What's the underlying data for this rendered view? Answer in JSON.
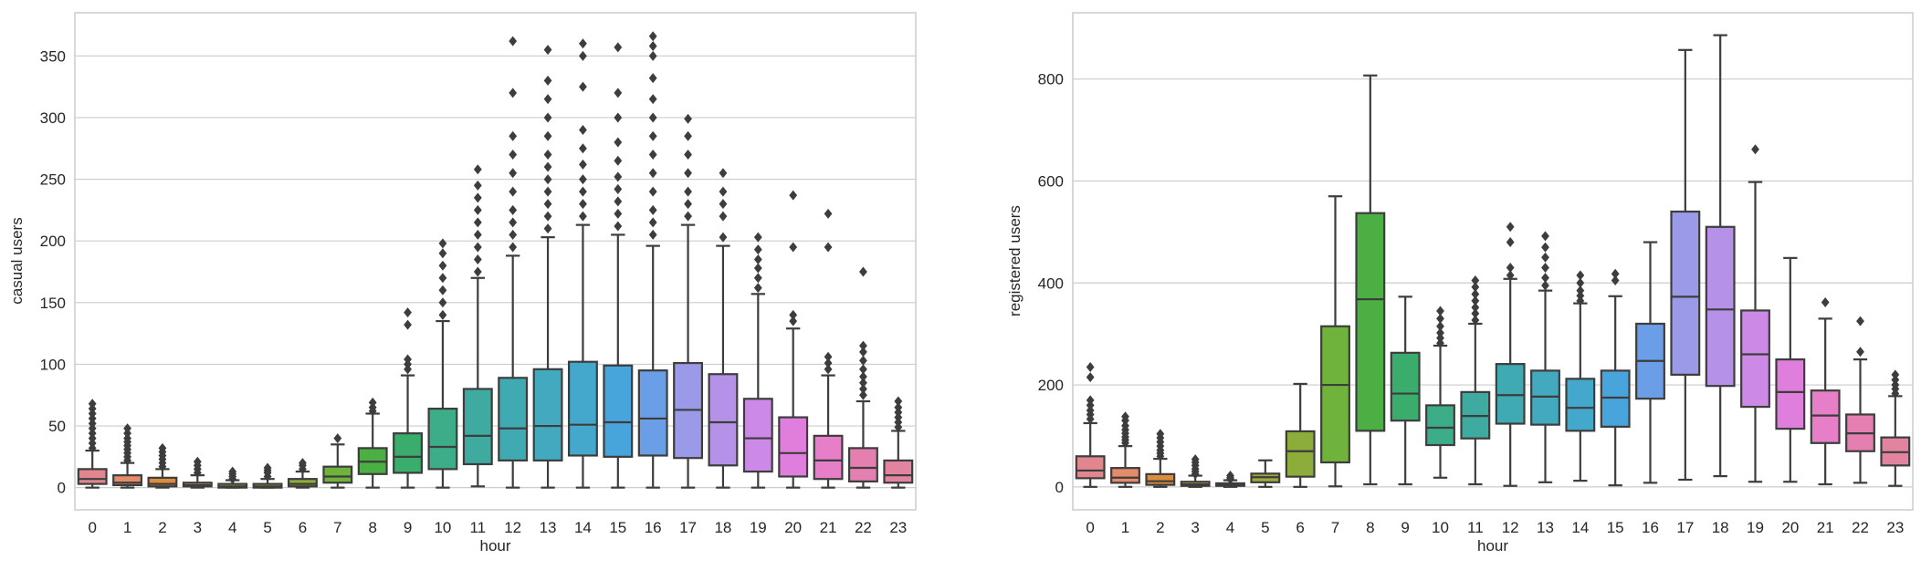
{
  "chart_data": [
    {
      "type": "box",
      "xlabel": "hour",
      "ylabel": "casual users",
      "categories": [
        "0",
        "1",
        "2",
        "3",
        "4",
        "5",
        "6",
        "7",
        "8",
        "9",
        "10",
        "11",
        "12",
        "13",
        "14",
        "15",
        "16",
        "17",
        "18",
        "19",
        "20",
        "21",
        "22",
        "23"
      ],
      "ylim": [
        -18,
        385
      ],
      "yticks": [
        0,
        50,
        100,
        150,
        200,
        250,
        300,
        350
      ],
      "grid": "horizontal",
      "boxes": [
        {
          "min": 0,
          "q1": 3,
          "median": 7,
          "q3": 15,
          "max": 30,
          "outliers": [
            32,
            36,
            40,
            44,
            48,
            52,
            56,
            60,
            64,
            68
          ]
        },
        {
          "min": 0,
          "q1": 2,
          "median": 4,
          "q3": 10,
          "max": 20,
          "outliers": [
            22,
            25,
            28,
            31,
            34,
            37,
            40,
            44,
            48
          ]
        },
        {
          "min": 0,
          "q1": 1,
          "median": 3,
          "q3": 8,
          "max": 15,
          "outliers": [
            17,
            20,
            23,
            26,
            29,
            32
          ]
        },
        {
          "min": 0,
          "q1": 1,
          "median": 2,
          "q3": 4,
          "max": 10,
          "outliers": [
            12,
            15,
            18,
            21
          ]
        },
        {
          "min": 0,
          "q1": 0,
          "median": 1,
          "q3": 3,
          "max": 6,
          "outliers": [
            7,
            9,
            11,
            13
          ]
        },
        {
          "min": 0,
          "q1": 0,
          "median": 1,
          "q3": 3,
          "max": 7,
          "outliers": [
            9,
            12,
            14,
            16
          ]
        },
        {
          "min": 0,
          "q1": 1,
          "median": 3,
          "q3": 7,
          "max": 13,
          "outliers": [
            15,
            18,
            20
          ]
        },
        {
          "min": 0,
          "q1": 4,
          "median": 9,
          "q3": 17,
          "max": 35,
          "outliers": [
            40
          ]
        },
        {
          "min": 0,
          "q1": 11,
          "median": 21,
          "q3": 32,
          "max": 60,
          "outliers": [
            62,
            65,
            69
          ]
        },
        {
          "min": 0,
          "q1": 12,
          "median": 25,
          "q3": 44,
          "max": 91,
          "outliers": [
            96,
            100,
            104,
            132,
            142
          ]
        },
        {
          "min": 0,
          "q1": 15,
          "median": 33,
          "q3": 64,
          "max": 135,
          "outliers": [
            140,
            150,
            160,
            170,
            180,
            190,
            198
          ]
        },
        {
          "min": 1,
          "q1": 19,
          "median": 42,
          "q3": 80,
          "max": 170,
          "outliers": [
            175,
            185,
            195,
            205,
            215,
            225,
            235,
            245,
            258
          ]
        },
        {
          "min": 0,
          "q1": 22,
          "median": 48,
          "q3": 89,
          "max": 188,
          "outliers": [
            195,
            205,
            215,
            225,
            240,
            255,
            270,
            285,
            320,
            362
          ]
        },
        {
          "min": 0,
          "q1": 22,
          "median": 50,
          "q3": 96,
          "max": 203,
          "outliers": [
            210,
            220,
            230,
            240,
            250,
            260,
            270,
            285,
            300,
            315,
            330,
            355
          ]
        },
        {
          "min": 0,
          "q1": 26,
          "median": 51,
          "q3": 102,
          "max": 213,
          "outliers": [
            220,
            230,
            240,
            250,
            262,
            275,
            290,
            325,
            350,
            360
          ]
        },
        {
          "min": 0,
          "q1": 25,
          "median": 53,
          "q3": 99,
          "max": 205,
          "outliers": [
            212,
            222,
            232,
            242,
            252,
            265,
            280,
            300,
            320,
            357
          ]
        },
        {
          "min": 0,
          "q1": 26,
          "median": 56,
          "q3": 95,
          "max": 196,
          "outliers": [
            205,
            215,
            225,
            240,
            255,
            270,
            285,
            300,
            315,
            332,
            350,
            358,
            366
          ]
        },
        {
          "min": 0,
          "q1": 24,
          "median": 63,
          "q3": 101,
          "max": 213,
          "outliers": [
            220,
            230,
            240,
            255,
            270,
            285,
            299
          ]
        },
        {
          "min": 0,
          "q1": 18,
          "median": 53,
          "q3": 92,
          "max": 196,
          "outliers": [
            203,
            220,
            230,
            240,
            255
          ]
        },
        {
          "min": 0,
          "q1": 13,
          "median": 40,
          "q3": 72,
          "max": 157,
          "outliers": [
            162,
            170,
            178,
            185,
            193,
            203
          ]
        },
        {
          "min": 0,
          "q1": 9,
          "median": 28,
          "q3": 57,
          "max": 129,
          "outliers": [
            135,
            140,
            195,
            237
          ]
        },
        {
          "min": 0,
          "q1": 7,
          "median": 22,
          "q3": 42,
          "max": 91,
          "outliers": [
            96,
            101,
            106,
            195,
            222
          ]
        },
        {
          "min": 0,
          "q1": 5,
          "median": 16,
          "q3": 32,
          "max": 70,
          "outliers": [
            75,
            80,
            85,
            90,
            96,
            103,
            110,
            115,
            175
          ]
        },
        {
          "min": 0,
          "q1": 4,
          "median": 10,
          "q3": 22,
          "max": 46,
          "outliers": [
            49,
            53,
            57,
            61,
            65,
            70
          ]
        }
      ]
    },
    {
      "type": "box",
      "xlabel": "hour",
      "ylabel": "registered users",
      "categories": [
        "0",
        "1",
        "2",
        "3",
        "4",
        "5",
        "6",
        "7",
        "8",
        "9",
        "10",
        "11",
        "12",
        "13",
        "14",
        "15",
        "16",
        "17",
        "18",
        "19",
        "20",
        "21",
        "22",
        "23"
      ],
      "ylim": [
        -45,
        930
      ],
      "yticks": [
        0,
        200,
        400,
        600,
        800
      ],
      "grid": "horizontal",
      "boxes": [
        {
          "min": 0,
          "q1": 17,
          "median": 32,
          "q3": 60,
          "max": 125,
          "outliers": [
            133,
            142,
            150,
            160,
            170,
            215,
            235
          ]
        },
        {
          "min": 0,
          "q1": 8,
          "median": 18,
          "q3": 37,
          "max": 80,
          "outliers": [
            86,
            92,
            98,
            105,
            112,
            120,
            130,
            138
          ]
        },
        {
          "min": 0,
          "q1": 4,
          "median": 11,
          "q3": 25,
          "max": 55,
          "outliers": [
            60,
            66,
            72,
            80,
            88,
            96,
            104
          ]
        },
        {
          "min": 0,
          "q1": 2,
          "median": 5,
          "q3": 10,
          "max": 22,
          "outliers": [
            25,
            30,
            35,
            42,
            48,
            54
          ]
        },
        {
          "min": 0,
          "q1": 2,
          "median": 4,
          "q3": 7,
          "max": 13,
          "outliers": [
            15,
            18,
            22
          ]
        },
        {
          "min": 0,
          "q1": 9,
          "median": 19,
          "q3": 26,
          "max": 52,
          "outliers": []
        },
        {
          "min": 0,
          "q1": 20,
          "median": 70,
          "q3": 109,
          "max": 202,
          "outliers": []
        },
        {
          "min": 1,
          "q1": 48,
          "median": 200,
          "q3": 315,
          "max": 570,
          "outliers": []
        },
        {
          "min": 5,
          "q1": 110,
          "median": 368,
          "q3": 537,
          "max": 807,
          "outliers": []
        },
        {
          "min": 5,
          "q1": 130,
          "median": 183,
          "q3": 263,
          "max": 373,
          "outliers": []
        },
        {
          "min": 18,
          "q1": 82,
          "median": 116,
          "q3": 160,
          "max": 277,
          "outliers": [
            282,
            292,
            302,
            315,
            330,
            345
          ]
        },
        {
          "min": 5,
          "q1": 95,
          "median": 139,
          "q3": 186,
          "max": 320,
          "outliers": [
            327,
            340,
            352,
            365,
            378,
            392,
            405
          ]
        },
        {
          "min": 2,
          "q1": 124,
          "median": 180,
          "q3": 241,
          "max": 408,
          "outliers": [
            415,
            430,
            480,
            510
          ]
        },
        {
          "min": 9,
          "q1": 122,
          "median": 177,
          "q3": 228,
          "max": 385,
          "outliers": [
            395,
            410,
            430,
            450,
            470,
            492
          ]
        },
        {
          "min": 12,
          "q1": 110,
          "median": 155,
          "q3": 212,
          "max": 360,
          "outliers": [
            365,
            375,
            385,
            400,
            415
          ]
        },
        {
          "min": 3,
          "q1": 118,
          "median": 175,
          "q3": 228,
          "max": 374,
          "outliers": [
            405,
            418
          ]
        },
        {
          "min": 8,
          "q1": 173,
          "median": 247,
          "q3": 320,
          "max": 480,
          "outliers": []
        },
        {
          "min": 14,
          "q1": 220,
          "median": 373,
          "q3": 540,
          "max": 857,
          "outliers": []
        },
        {
          "min": 21,
          "q1": 198,
          "median": 348,
          "q3": 510,
          "max": 886,
          "outliers": []
        },
        {
          "min": 10,
          "q1": 157,
          "median": 260,
          "q3": 346,
          "max": 598,
          "outliers": [
            662
          ]
        },
        {
          "min": 10,
          "q1": 114,
          "median": 186,
          "q3": 250,
          "max": 449,
          "outliers": []
        },
        {
          "min": 5,
          "q1": 86,
          "median": 140,
          "q3": 189,
          "max": 330,
          "outliers": [
            362
          ]
        },
        {
          "min": 8,
          "q1": 70,
          "median": 105,
          "q3": 142,
          "max": 250,
          "outliers": [
            265,
            325
          ]
        },
        {
          "min": 2,
          "q1": 42,
          "median": 68,
          "q3": 97,
          "max": 178,
          "outliers": [
            183,
            192,
            200,
            210,
            220
          ]
        }
      ]
    }
  ],
  "colors": {
    "boxes": [
      "#e1868e",
      "#e48b6a",
      "#dc8c3c",
      "#c39b3f",
      "#b1a23d",
      "#a0a93c",
      "#8cad3a",
      "#6fb33c",
      "#4caf44",
      "#3aad6c",
      "#3dac88",
      "#3faba0",
      "#40aab2",
      "#42a9be",
      "#44a7cc",
      "#4aa4dc",
      "#6a9ee6",
      "#9a9ae8",
      "#b592e8",
      "#cc8ae6",
      "#e07ede",
      "#e67ec8",
      "#e57fb1",
      "#e2839f"
    ],
    "line": "#3d3d3d",
    "grid": "#cccccc",
    "frame": "#cccccc"
  }
}
